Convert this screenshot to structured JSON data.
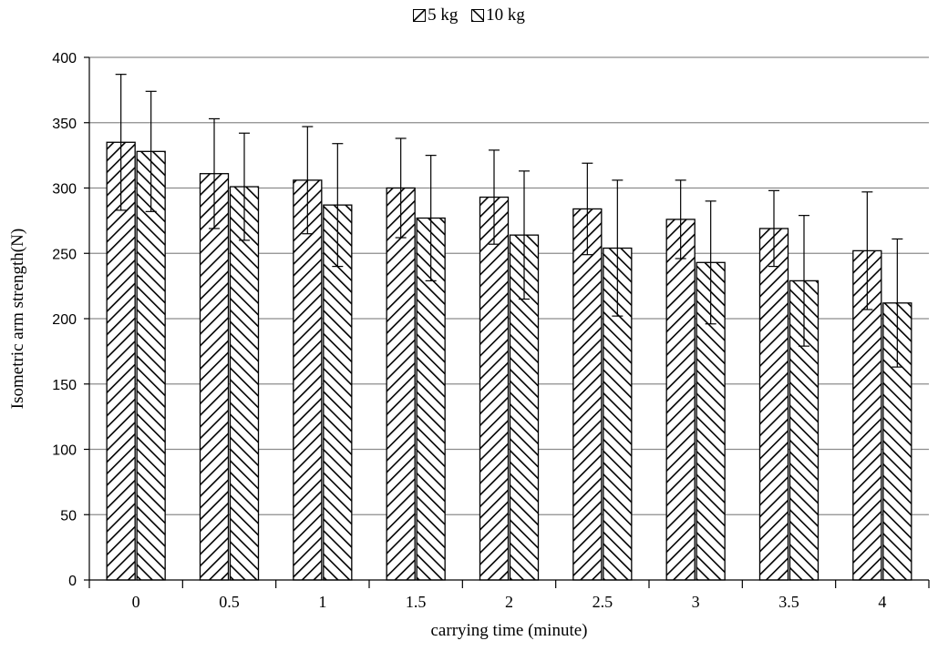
{
  "chart_data": {
    "type": "bar",
    "title": "",
    "xlabel": "carrying time (minute)",
    "ylabel": "Isometric arm strength(N)",
    "categories": [
      "0",
      "0.5",
      "1",
      "1.5",
      "2",
      "2.5",
      "3",
      "3.5",
      "4"
    ],
    "ylim": [
      0,
      400
    ],
    "yticks": [
      0,
      50,
      100,
      150,
      200,
      250,
      300,
      350,
      400
    ],
    "grid": true,
    "legend_position": "top",
    "series": [
      {
        "name": "5 kg",
        "pattern": "diagonal-up-hatch",
        "values": [
          335,
          311,
          306,
          300,
          293,
          284,
          276,
          269,
          252
        ],
        "error": [
          52,
          42,
          41,
          38,
          36,
          35,
          30,
          29,
          45
        ]
      },
      {
        "name": "10 kg",
        "pattern": "diagonal-down-hatch",
        "values": [
          328,
          301,
          287,
          277,
          264,
          254,
          243,
          229,
          212
        ],
        "error": [
          46,
          41,
          47,
          48,
          49,
          52,
          47,
          50,
          49
        ]
      }
    ],
    "colors": {
      "bar_fill": "#ffffff",
      "stroke": "#000000",
      "grid": "#8c8c8c",
      "axis": "#000000"
    }
  }
}
